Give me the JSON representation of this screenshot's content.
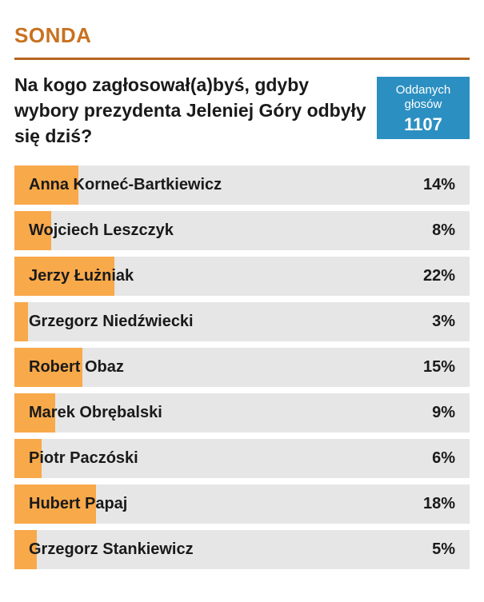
{
  "header": {
    "title": "SONDA"
  },
  "question": "Na kogo zagłosował(a)byś, gdyby wybory prezydenta Jeleniej Góry odbyły się dziś?",
  "votes": {
    "label_line1": "Oddanych",
    "label_line2": "głosów",
    "count": "1107"
  },
  "colors": {
    "accent": "#c8711f",
    "bar_fill": "#f8a94a",
    "bar_bg": "#e6e6e6",
    "votes_box": "#2c8fc1"
  },
  "options": [
    {
      "name": "Anna Korneć-Bartkiewicz",
      "percent_label": "14%",
      "percent": 14
    },
    {
      "name": "Wojciech Leszczyk",
      "percent_label": "8%",
      "percent": 8
    },
    {
      "name": "Jerzy Łużniak",
      "percent_label": "22%",
      "percent": 22
    },
    {
      "name": "Grzegorz Niedźwiecki",
      "percent_label": "3%",
      "percent": 3
    },
    {
      "name": "Robert Obaz",
      "percent_label": "15%",
      "percent": 15
    },
    {
      "name": "Marek Obrębalski",
      "percent_label": "9%",
      "percent": 9
    },
    {
      "name": "Piotr Paczóski",
      "percent_label": "6%",
      "percent": 6
    },
    {
      "name": "Hubert Papaj",
      "percent_label": "18%",
      "percent": 18
    },
    {
      "name": "Grzegorz Stankiewicz",
      "percent_label": "5%",
      "percent": 5
    }
  ]
}
